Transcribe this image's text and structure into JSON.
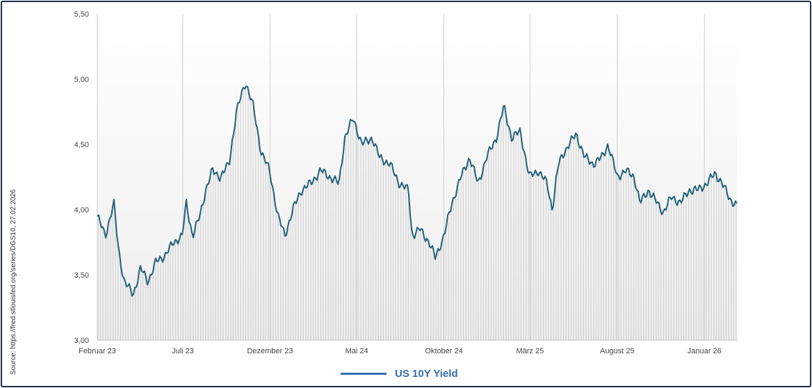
{
  "source_note": "Source: https://fred.stlouisfed.org/series/DGS10, 27.02.2026",
  "chart_data": {
    "type": "line",
    "title": "",
    "xlabel": "",
    "ylabel": "",
    "ylim": [
      3.0,
      5.5
    ],
    "y_ticks": [
      "3,00",
      "3,50",
      "4,00",
      "4,50",
      "5,00",
      "5,50"
    ],
    "y_tick_values": [
      3.0,
      3.5,
      4.0,
      4.5,
      5.0,
      5.5
    ],
    "x_range": [
      "2023-02-01",
      "2026-02-27"
    ],
    "x_ticks": [
      {
        "label": "Februar 23",
        "date": "2023-02-01"
      },
      {
        "label": "Juli 23",
        "date": "2023-07-01"
      },
      {
        "label": "Dezember 23",
        "date": "2023-12-01"
      },
      {
        "label": "Mai 24",
        "date": "2024-05-01"
      },
      {
        "label": "Oktober 24",
        "date": "2024-10-01"
      },
      {
        "label": "März 25",
        "date": "2025-03-01"
      },
      {
        "label": "August 25",
        "date": "2025-08-01"
      },
      {
        "label": "Januar 26",
        "date": "2026-01-01"
      }
    ],
    "grid": true,
    "legend_position": "bottom-center",
    "series": [
      {
        "name": "US 10Y Yield",
        "color": "#1f5f7a",
        "points": [
          [
            "2023-02-01",
            3.95
          ],
          [
            "2023-02-15",
            3.8
          ],
          [
            "2023-03-02",
            4.05
          ],
          [
            "2023-03-10",
            3.7
          ],
          [
            "2023-03-20",
            3.45
          ],
          [
            "2023-04-05",
            3.35
          ],
          [
            "2023-04-18",
            3.55
          ],
          [
            "2023-05-01",
            3.45
          ],
          [
            "2023-05-15",
            3.6
          ],
          [
            "2023-05-31",
            3.65
          ],
          [
            "2023-06-15",
            3.75
          ],
          [
            "2023-06-30",
            3.8
          ],
          [
            "2023-07-07",
            4.05
          ],
          [
            "2023-07-18",
            3.8
          ],
          [
            "2023-07-31",
            3.95
          ],
          [
            "2023-08-10",
            4.15
          ],
          [
            "2023-08-22",
            4.3
          ],
          [
            "2023-09-05",
            4.25
          ],
          [
            "2023-09-20",
            4.35
          ],
          [
            "2023-10-03",
            4.75
          ],
          [
            "2023-10-19",
            4.98
          ],
          [
            "2023-11-01",
            4.8
          ],
          [
            "2023-11-15",
            4.45
          ],
          [
            "2023-11-30",
            4.3
          ],
          [
            "2023-12-15",
            3.95
          ],
          [
            "2023-12-27",
            3.8
          ],
          [
            "2024-01-10",
            4.0
          ],
          [
            "2024-01-25",
            4.15
          ],
          [
            "2024-02-10",
            4.2
          ],
          [
            "2024-02-28",
            4.3
          ],
          [
            "2024-03-15",
            4.25
          ],
          [
            "2024-03-31",
            4.2
          ],
          [
            "2024-04-10",
            4.55
          ],
          [
            "2024-04-25",
            4.7
          ],
          [
            "2024-05-10",
            4.5
          ],
          [
            "2024-05-28",
            4.55
          ],
          [
            "2024-06-10",
            4.4
          ],
          [
            "2024-06-28",
            4.35
          ],
          [
            "2024-07-15",
            4.2
          ],
          [
            "2024-07-31",
            4.15
          ],
          [
            "2024-08-06",
            3.8
          ],
          [
            "2024-08-20",
            3.85
          ],
          [
            "2024-09-05",
            3.75
          ],
          [
            "2024-09-16",
            3.63
          ],
          [
            "2024-10-01",
            3.8
          ],
          [
            "2024-10-15",
            4.05
          ],
          [
            "2024-10-31",
            4.25
          ],
          [
            "2024-11-15",
            4.4
          ],
          [
            "2024-11-30",
            4.2
          ],
          [
            "2024-12-15",
            4.4
          ],
          [
            "2025-01-01",
            4.55
          ],
          [
            "2025-01-14",
            4.79
          ],
          [
            "2025-01-28",
            4.55
          ],
          [
            "2025-02-12",
            4.6
          ],
          [
            "2025-02-28",
            4.25
          ],
          [
            "2025-03-15",
            4.3
          ],
          [
            "2025-03-31",
            4.2
          ],
          [
            "2025-04-09",
            4.0
          ],
          [
            "2025-04-20",
            4.35
          ],
          [
            "2025-05-01",
            4.45
          ],
          [
            "2025-05-21",
            4.58
          ],
          [
            "2025-06-05",
            4.4
          ],
          [
            "2025-06-20",
            4.35
          ],
          [
            "2025-07-05",
            4.4
          ],
          [
            "2025-07-16",
            4.5
          ],
          [
            "2025-08-01",
            4.25
          ],
          [
            "2025-08-15",
            4.3
          ],
          [
            "2025-08-31",
            4.25
          ],
          [
            "2025-09-10",
            4.05
          ],
          [
            "2025-09-25",
            4.15
          ],
          [
            "2025-10-10",
            4.05
          ],
          [
            "2025-10-21",
            3.98
          ],
          [
            "2025-11-05",
            4.1
          ],
          [
            "2025-11-20",
            4.05
          ],
          [
            "2025-12-05",
            4.15
          ],
          [
            "2025-12-20",
            4.15
          ],
          [
            "2026-01-05",
            4.2
          ],
          [
            "2026-01-20",
            4.28
          ],
          [
            "2026-02-01",
            4.2
          ],
          [
            "2026-02-15",
            4.08
          ],
          [
            "2026-02-27",
            4.03
          ]
        ]
      }
    ]
  }
}
